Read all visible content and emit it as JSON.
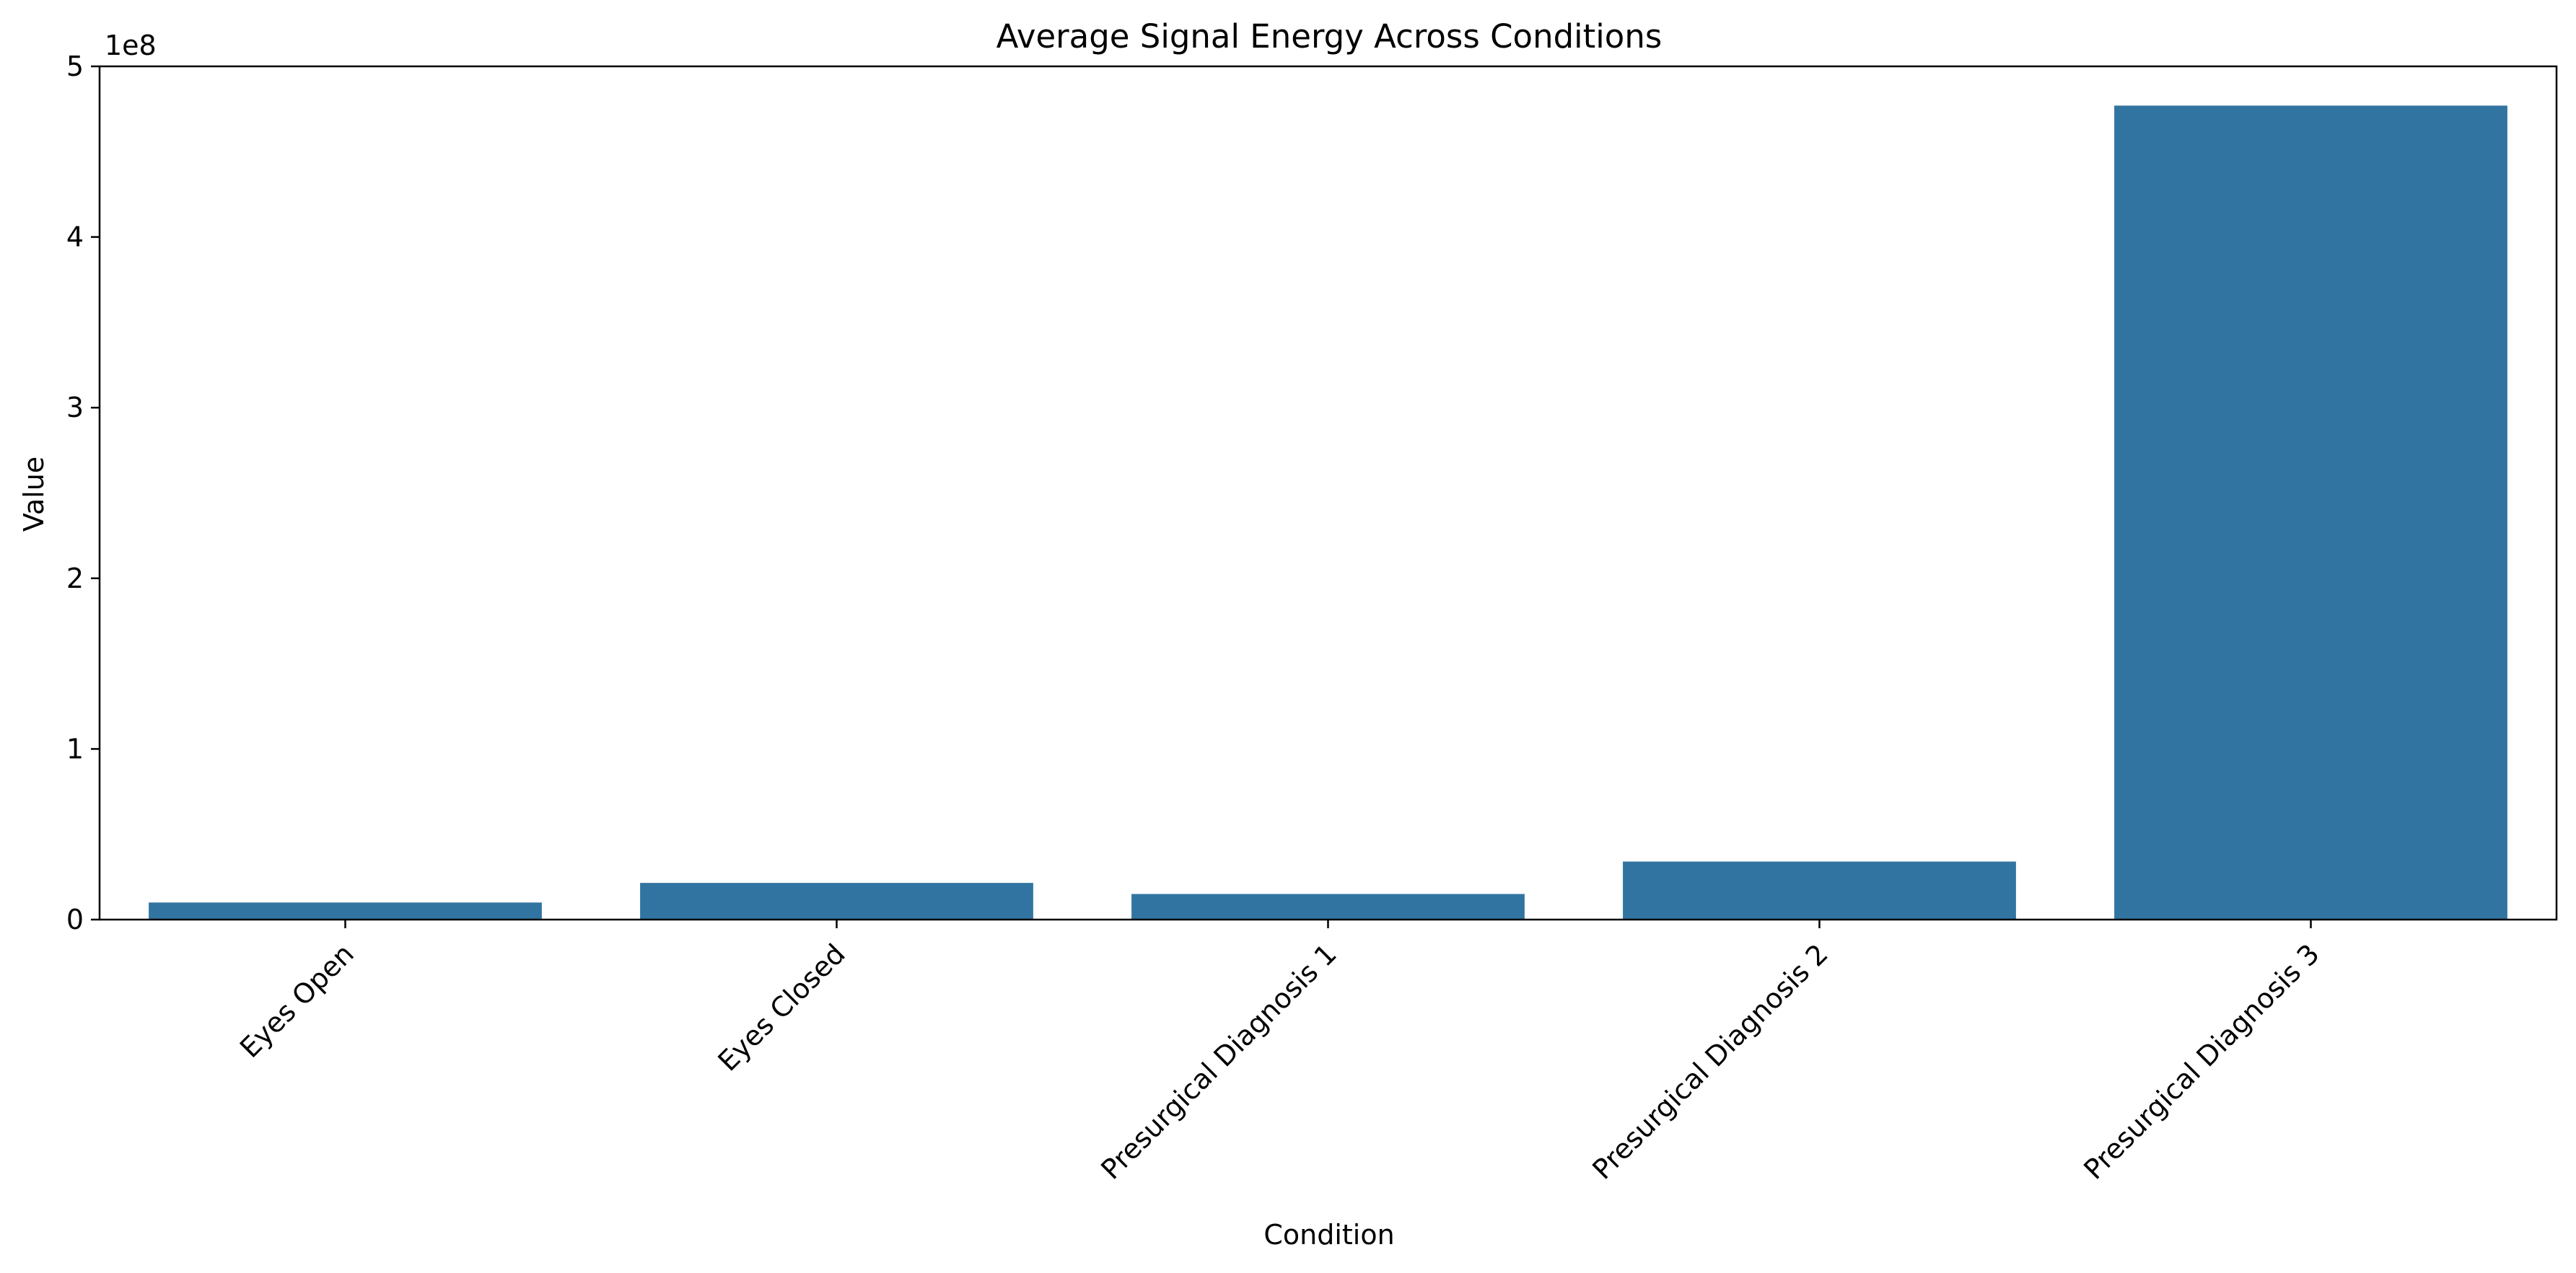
{
  "chart_data": {
    "type": "bar",
    "title": "Average Signal Energy Across Conditions",
    "xlabel": "Condition",
    "ylabel": "Value",
    "offset_label": "1e8",
    "categories": [
      "Eyes Open",
      "Eyes Closed",
      "Presurgical Diagnosis 1",
      "Presurgical Diagnosis 2",
      "Presurgical Diagnosis 3"
    ],
    "values": [
      10000000,
      21500000,
      15000000,
      34000000,
      477000000
    ],
    "ylim": [
      0,
      500000000
    ],
    "yticks": [
      0,
      100000000,
      200000000,
      300000000,
      400000000,
      500000000
    ],
    "ytick_labels": [
      "0",
      "1",
      "2",
      "3",
      "4",
      "5"
    ],
    "bar_color": "#3274a1",
    "grid": false,
    "legend": "none"
  }
}
